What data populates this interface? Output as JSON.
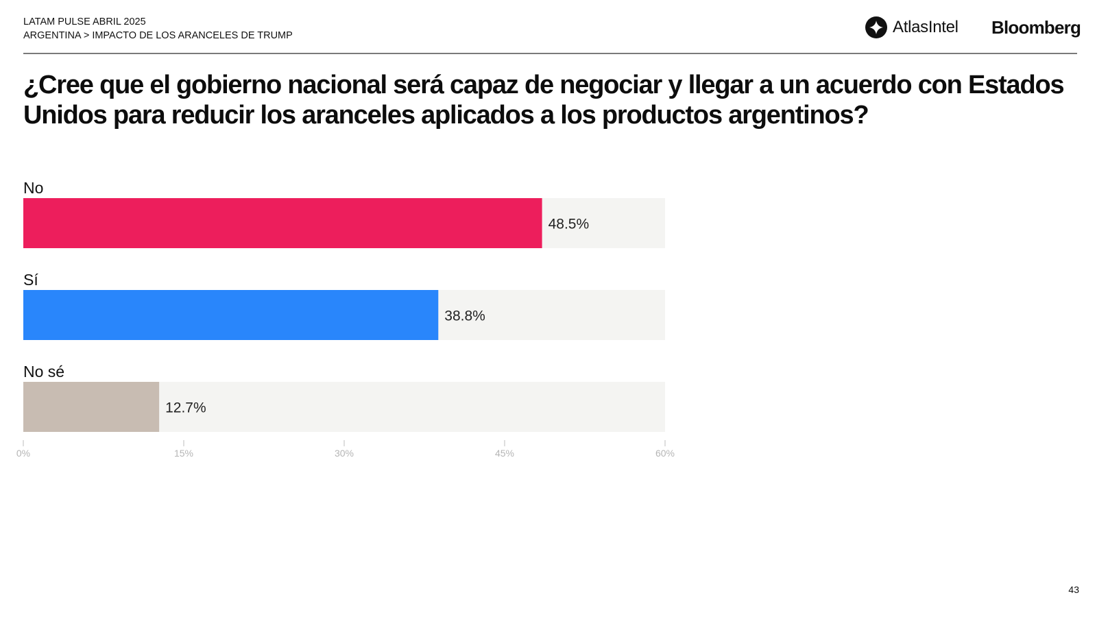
{
  "header": {
    "line1": "LATAM PULSE ABRIL 2025",
    "line2": "ARGENTINA > IMPACTO DE LOS ARANCELES DE TRUMP",
    "brand_atlas": "AtlasIntel",
    "brand_bloomberg": "Bloomberg"
  },
  "page_number": "43",
  "chart_data": {
    "type": "bar",
    "orientation": "horizontal",
    "title": "¿Cree que el gobierno nacional será capaz de negociar y llegar a un acuerdo con Estados Unidos para reducir los aranceles aplicados a los productos argentinos?",
    "categories": [
      "No",
      "Sí",
      "No sé"
    ],
    "values": [
      48.5,
      38.8,
      12.7
    ],
    "value_labels": [
      "48.5%",
      "38.8%",
      "12.7%"
    ],
    "colors": [
      "#ed1e5c",
      "#2986fb",
      "#c8bcb2"
    ],
    "track_color": "#f4f4f2",
    "xlim": [
      0,
      60
    ],
    "xticks": [
      0,
      15,
      30,
      45,
      60
    ],
    "xtick_labels": [
      "0%",
      "15%",
      "30%",
      "45%",
      "60%"
    ],
    "xlabel": "",
    "ylabel": "",
    "grid": false
  }
}
